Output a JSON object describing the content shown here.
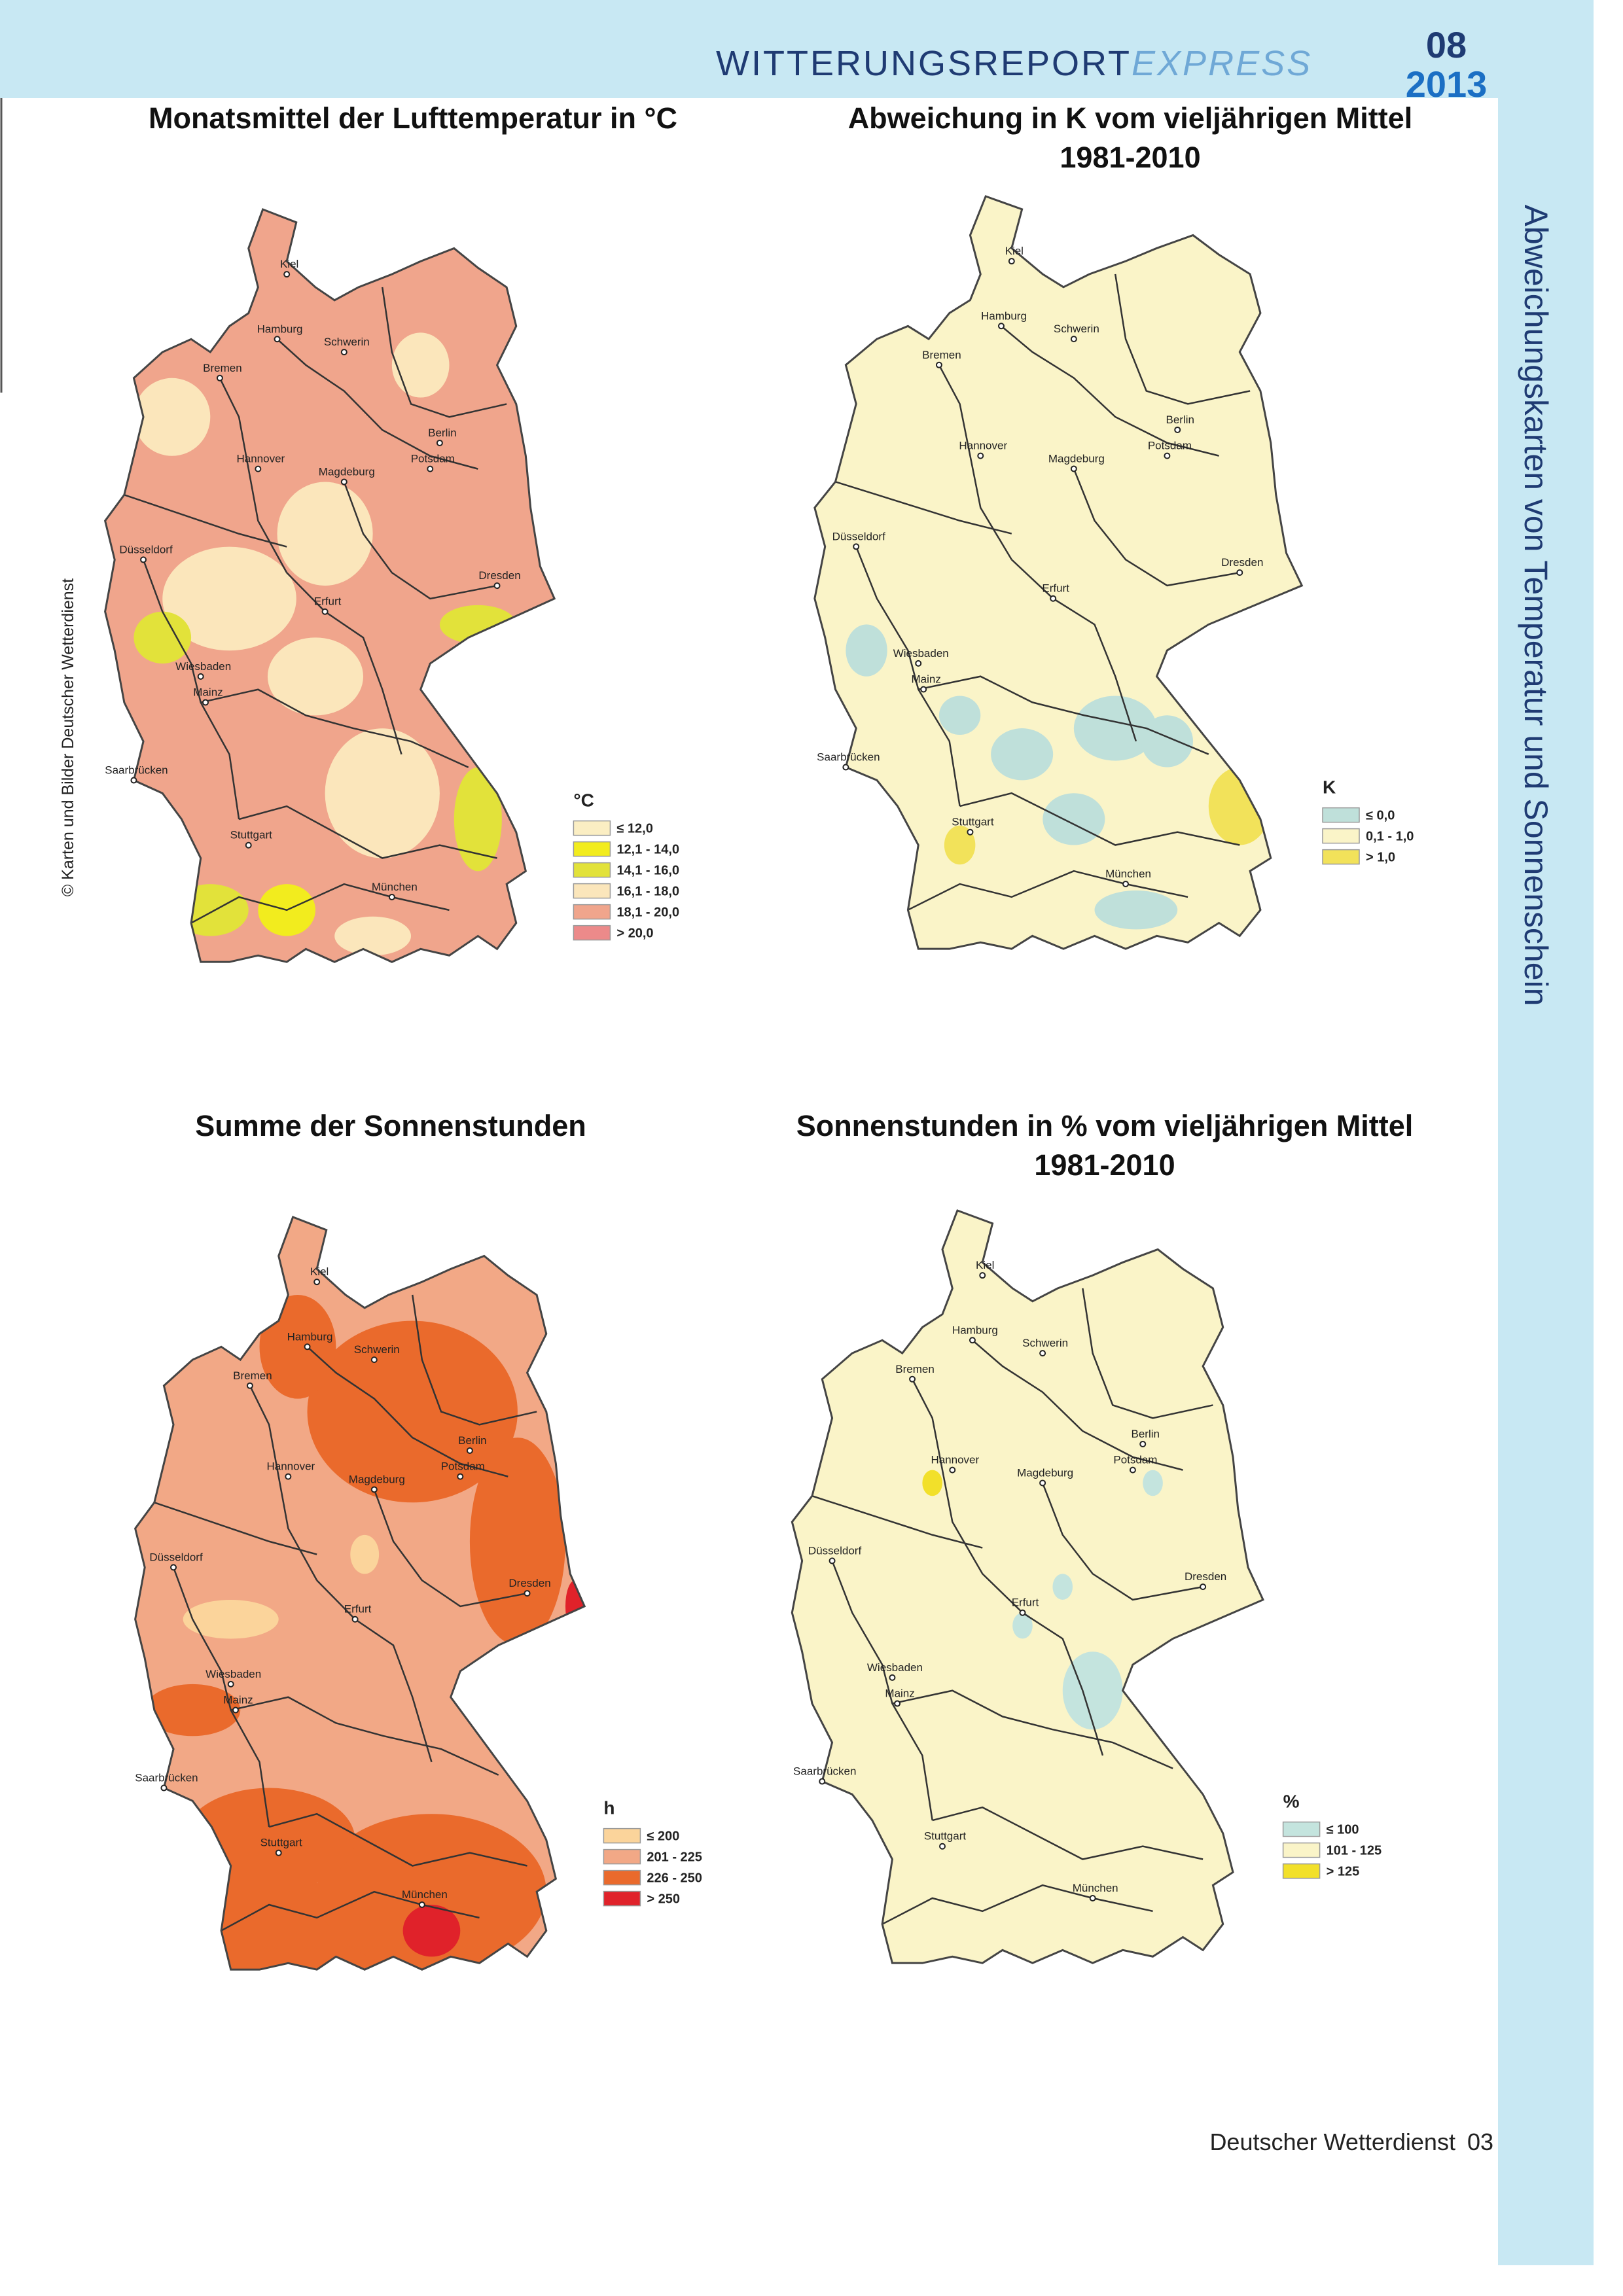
{
  "header": {
    "report": "WITTERUNGSREPORT",
    "express": "EXPRESS",
    "month": "08",
    "year": "2013"
  },
  "side_title": "Abweichungskarten von Temperatur und Sonnenschein",
  "copyright": "© Karten und Bilder Deutscher Wetterdienst",
  "cities": [
    "Kiel",
    "Hamburg",
    "Schwerin",
    "Bremen",
    "Berlin",
    "Potsdam",
    "Hannover",
    "Magdeburg",
    "Düsseldorf",
    "Dresden",
    "Erfurt",
    "Wiesbaden",
    "Mainz",
    "Saarbrücken",
    "Stuttgart",
    "München"
  ],
  "maps": [
    {
      "title_lines": [
        "Monatsmittel der Lufttemperatur in °C"
      ],
      "legend": {
        "unit": "°C",
        "items": [
          {
            "label": "≤ 12,0",
            "color": "#fbeec3"
          },
          {
            "label": "12,1 - 14,0",
            "color": "#f2ec1e"
          },
          {
            "label": "14,1 - 16,0",
            "color": "#e2e23a"
          },
          {
            "label": "16,1 - 18,0",
            "color": "#fbe6bb"
          },
          {
            "label": "18,1 - 20,0",
            "color": "#f0a58c"
          },
          {
            "label": "> 20,0",
            "color": "#ec8a8a"
          }
        ]
      }
    },
    {
      "title_lines": [
        "Abweichung in K vom vieljährigen Mittel",
        "1981-2010"
      ],
      "legend": {
        "unit": "K",
        "items": [
          {
            "label": "≤ 0,0",
            "color": "#bfe0da"
          },
          {
            "label": "0,1 - 1,0",
            "color": "#faf4c8"
          },
          {
            "label": "> 1,0",
            "color": "#f2e25a"
          }
        ]
      }
    },
    {
      "title_lines": [
        "Summe der Sonnenstunden"
      ],
      "legend": {
        "unit": "h",
        "items": [
          {
            "label": "≤ 200",
            "color": "#fbd49b"
          },
          {
            "label": "201 - 225",
            "color": "#f2a886"
          },
          {
            "label": "226 - 250",
            "color": "#ea6a2c"
          },
          {
            "label": "> 250",
            "color": "#e0222a"
          }
        ]
      }
    },
    {
      "title_lines": [
        "Sonnenstunden in % vom vieljährigen Mittel",
        "1981-2010"
      ],
      "legend": {
        "unit": "%",
        "items": [
          {
            "label": "≤ 100",
            "color": "#c4e4de"
          },
          {
            "label": "101 - 125",
            "color": "#faf4c8"
          },
          {
            "label": "> 125",
            "color": "#f2e02a"
          }
        ]
      }
    }
  ],
  "footer": {
    "publisher": "Deutscher Wetterdienst",
    "page": "03"
  }
}
